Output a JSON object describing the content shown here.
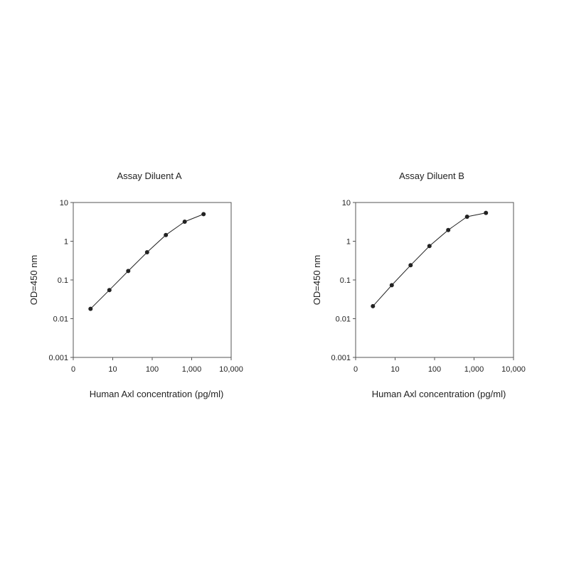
{
  "chart_data": [
    {
      "type": "line",
      "title": "Assay Diluent A",
      "xlabel": "Human Axl concentration (pg/ml)",
      "ylabel": "OD=450 nm",
      "x_scale": "log",
      "y_scale": "log",
      "xlim": [
        1,
        10000
      ],
      "ylim": [
        0.001,
        10
      ],
      "x_ticks": [
        1,
        10,
        100,
        1000,
        10000
      ],
      "x_tick_labels": [
        "0",
        "10",
        "100",
        "1,000",
        "10,000"
      ],
      "y_ticks": [
        0.001,
        0.01,
        0.1,
        1,
        10
      ],
      "y_tick_labels": [
        "0.001",
        "0.01",
        "0.1",
        "1",
        "10"
      ],
      "grid": false,
      "series": [
        {
          "x": [
            2.74,
            8.23,
            24.7,
            74.1,
            222,
            667,
            2000
          ],
          "y": [
            0.018,
            0.055,
            0.17,
            0.52,
            1.45,
            3.2,
            5.0
          ],
          "color": "#222222"
        }
      ]
    },
    {
      "type": "line",
      "title": "Assay Diluent B",
      "xlabel": "Human Axl concentration (pg/ml)",
      "ylabel": "OD=450 nm",
      "x_scale": "log",
      "y_scale": "log",
      "xlim": [
        1,
        10000
      ],
      "ylim": [
        0.001,
        10
      ],
      "x_ticks": [
        1,
        10,
        100,
        1000,
        10000
      ],
      "x_tick_labels": [
        "0",
        "10",
        "100",
        "1,000",
        "10,000"
      ],
      "y_ticks": [
        0.001,
        0.01,
        0.1,
        1,
        10
      ],
      "y_tick_labels": [
        "0.001",
        "0.01",
        "0.1",
        "1",
        "10"
      ],
      "grid": false,
      "series": [
        {
          "x": [
            2.74,
            8.23,
            24.7,
            74.1,
            222,
            667,
            2000
          ],
          "y": [
            0.021,
            0.073,
            0.24,
            0.75,
            1.95,
            4.3,
            5.4
          ],
          "color": "#222222"
        }
      ]
    }
  ]
}
